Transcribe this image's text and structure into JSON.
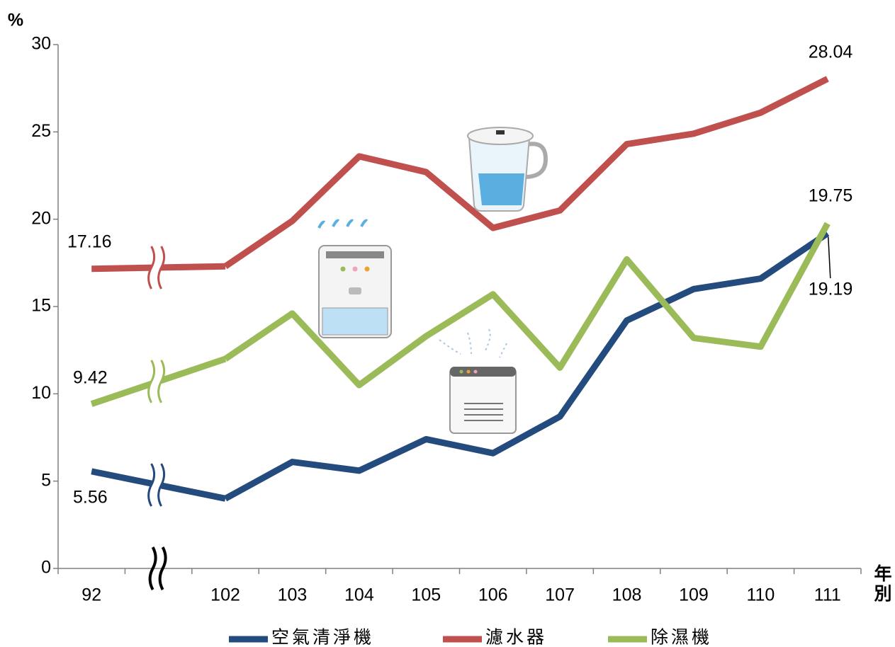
{
  "chart_data": {
    "type": "line",
    "y_label": "%",
    "x_label": "年別",
    "categories": [
      "92",
      null,
      "102",
      "103",
      "104",
      "105",
      "106",
      "107",
      "108",
      "109",
      "110",
      "111"
    ],
    "ylim": [
      0,
      30
    ],
    "yticks": [
      0,
      5,
      10,
      15,
      20,
      25,
      30
    ],
    "series": [
      {
        "name": "空氣清淨機",
        "color": "#234b7e",
        "values": [
          5.56,
          null,
          4.0,
          6.1,
          5.6,
          7.4,
          6.6,
          8.7,
          14.2,
          16.0,
          16.6,
          19.19
        ]
      },
      {
        "name": "濾水器",
        "color": "#c0504d",
        "values": [
          17.16,
          null,
          17.3,
          19.9,
          23.6,
          22.7,
          19.5,
          20.5,
          24.3,
          24.9,
          26.1,
          28.04
        ]
      },
      {
        "name": "除濕機",
        "color": "#9bbb59",
        "values": [
          9.42,
          null,
          12.0,
          14.6,
          10.5,
          13.3,
          15.7,
          11.5,
          17.7,
          13.2,
          12.7,
          19.75
        ]
      }
    ]
  }
}
